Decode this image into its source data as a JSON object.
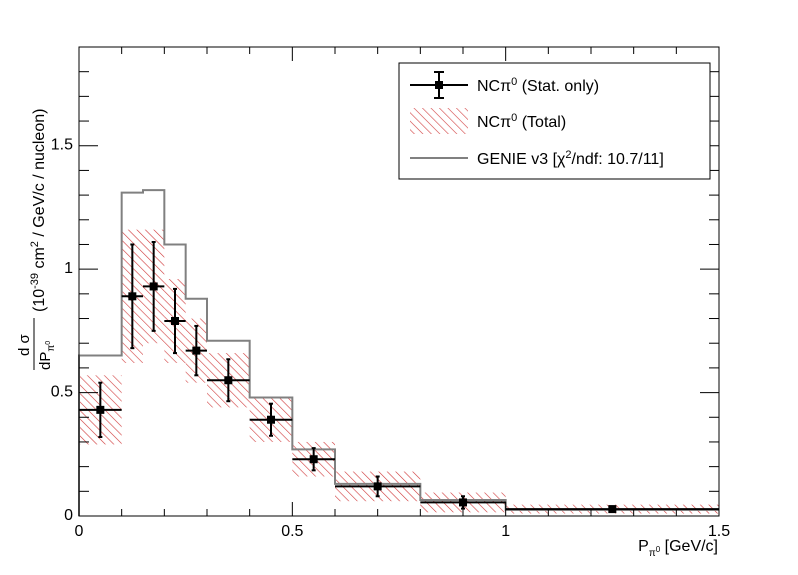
{
  "chart_data": {
    "type": "histogram",
    "title": "",
    "xlim": [
      0,
      1.5
    ],
    "ylim": [
      0,
      1.9
    ],
    "xlabel": {
      "main": "P",
      "sub_main": "π",
      "sub_sup": "0",
      "unit": " [GeV/c]"
    },
    "ylabel": {
      "frac_num": "d σ",
      "frac_den_main": "dP",
      "frac_den_sub": "π",
      "frac_den_subsup": "0",
      "rest_1": "(10",
      "exp": "-39",
      "rest_2": " cm",
      "exp2": "2",
      "rest_3": " / GeV/c / nucleon)"
    },
    "x_ticks": [
      {
        "value": 0,
        "label": "0"
      },
      {
        "value": 0.5,
        "label": "0.5"
      },
      {
        "value": 1,
        "label": "1"
      },
      {
        "value": 1.5,
        "label": "1.5"
      }
    ],
    "y_ticks": [
      {
        "value": 0,
        "label": "0"
      },
      {
        "value": 0.5,
        "label": "0.5"
      },
      {
        "value": 1,
        "label": "1"
      },
      {
        "value": 1.5,
        "label": "1.5"
      }
    ],
    "bins": [
      {
        "low": 0.0,
        "high": 0.1,
        "data": 0.43,
        "stat_err": 0.11,
        "total_err": 0.14,
        "genie": 0.65
      },
      {
        "low": 0.1,
        "high": 0.15,
        "data": 0.89,
        "stat_err": 0.21,
        "total_err": 0.27,
        "genie": 1.31
      },
      {
        "low": 0.15,
        "high": 0.2,
        "data": 0.93,
        "stat_err": 0.18,
        "total_err": 0.23,
        "genie": 1.32
      },
      {
        "low": 0.2,
        "high": 0.25,
        "data": 0.79,
        "stat_err": 0.13,
        "total_err": 0.17,
        "genie": 1.1
      },
      {
        "low": 0.25,
        "high": 0.3,
        "data": 0.67,
        "stat_err": 0.1,
        "total_err": 0.13,
        "genie": 0.88
      },
      {
        "low": 0.3,
        "high": 0.4,
        "data": 0.55,
        "stat_err": 0.085,
        "total_err": 0.11,
        "genie": 0.71
      },
      {
        "low": 0.4,
        "high": 0.5,
        "data": 0.39,
        "stat_err": 0.065,
        "total_err": 0.09,
        "genie": 0.48
      },
      {
        "low": 0.5,
        "high": 0.6,
        "data": 0.23,
        "stat_err": 0.045,
        "total_err": 0.07,
        "genie": 0.27
      },
      {
        "low": 0.6,
        "high": 0.8,
        "data": 0.12,
        "stat_err": 0.04,
        "total_err": 0.06,
        "genie": 0.13
      },
      {
        "low": 0.8,
        "high": 1.0,
        "data": 0.055,
        "stat_err": 0.025,
        "total_err": 0.04,
        "genie": 0.065
      },
      {
        "low": 1.0,
        "high": 1.5,
        "data": 0.028,
        "stat_err": 0.01,
        "total_err": 0.018,
        "genie": 0.025
      }
    ],
    "series": [
      {
        "name": "NCπ⁰ (Stat. only)",
        "type": "points",
        "color": "#000000"
      },
      {
        "name": "NCπ⁰ (Total)",
        "type": "hatched-band",
        "color": "#d0393a"
      },
      {
        "name": "GENIE v3 [χ²/ndf: 10.7/11]",
        "type": "step-line",
        "color": "#808080"
      }
    ],
    "legend": {
      "placement": "top-right",
      "entries": [
        {
          "prefix": "NCπ",
          "sup": "0",
          "suffix": " (Stat. only)"
        },
        {
          "prefix": "NCπ",
          "sup": "0",
          "suffix": " (Total)"
        },
        {
          "prefix": "GENIE v3 [χ",
          "sup": "2",
          "suffix": "/ndf: 10.7/11]"
        }
      ]
    },
    "grid": false
  }
}
